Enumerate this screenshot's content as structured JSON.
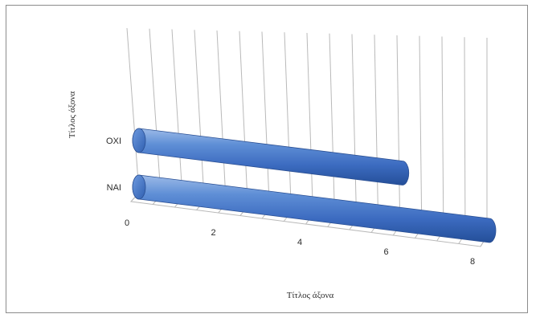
{
  "chart_data": {
    "type": "bar",
    "orientation": "horizontal",
    "style": "3d-cylinder",
    "categories": [
      "ΝΑΙ",
      "ΟΧΙ"
    ],
    "values": [
      8,
      6
    ],
    "xlim": [
      0,
      8
    ],
    "xticks": [
      0,
      2,
      4,
      6,
      8
    ],
    "xlabel": "Τίτλος άξονα",
    "ylabel": "Τίτλος άξονα",
    "grid": true,
    "legend": "none",
    "bar_color": "#4472c4"
  }
}
